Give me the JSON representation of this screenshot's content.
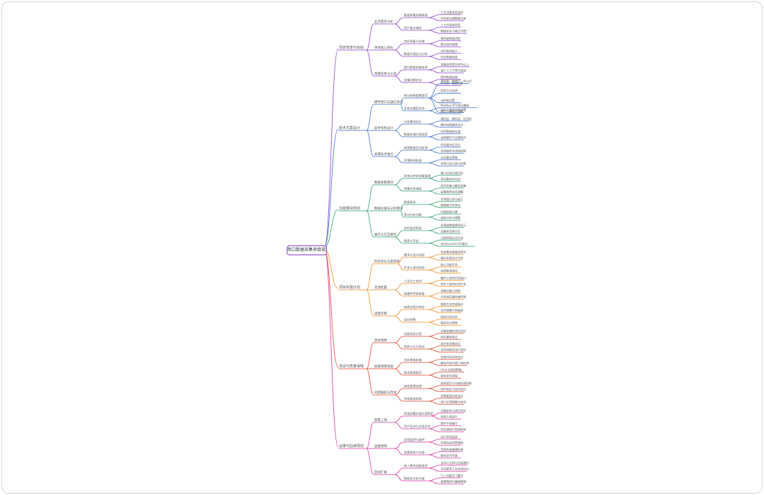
{
  "root": "串口数据采集项目规划",
  "branches": [
    {
      "label": "项目背景与目标",
      "color": "#8e3fd2",
      "children": [
        {
          "label": "业务需求分析",
          "children": [
            {
              "label": "数据采集场景梳理",
              "children": [
                "工业设备状态监控",
                "实验室仪器数据记录"
              ]
            },
            {
              "label": "用户痛点调研",
              "children": [
                "人工抄录效率低",
                "数据丢失与格式不统一"
              ]
            }
          ]
        },
        {
          "label": "项目核心目标",
          "children": [
            {
              "label": "实时采集与存储",
              "children": [
                "毫秒级数据读取",
                "断点续传保障"
              ]
            },
            {
              "label": "数据可视化与分析",
              "children": [
                "实时曲线展示",
                "历史数据回放"
              ]
            }
          ]
        },
        {
          "label": "预期成果与价值",
          "children": [
            {
              "label": "提升数据采集效率",
              "children": [
                "采集效率提升80%以上",
                "减少人工干预与错误"
              ]
            },
            {
              "label": "支撑决策优化",
              "children": [
                "提供数据依据",
                "形成统一数据标准"
              ]
            }
          ]
        }
      ]
    },
    {
      "label": "技术方案设计",
      "color": "#3a6fc8",
      "children": [
        {
          "label": "硬件接口与通信协议",
          "children": [
            {
              "label": "串口参数配置规范",
              "children": [
                "波特率、数据位、停止位",
                "校验方式选择",
                "流控制设置",
                "超时与重传机制配置"
              ]
            },
            {
              "label": "多协议兼容支持",
              "children": [
                "Modbus RTU协议解析",
                "自定义帧格式适配"
              ]
            }
          ]
        },
        {
          "label": "软件架构设计",
          "children": [
            {
              "label": "分层模块设计",
              "children": [
                "通信层、解析层、应用层",
                "模块间低耦合设计"
              ]
            },
            {
              "label": "数据存储方案选型",
              "children": [
                "时序数据库存储",
                "本地缓存与云端同步"
              ]
            }
          ]
        },
        {
          "label": "关键技术难点",
          "children": [
            {
              "label": "高频数据丢包处理",
              "children": [
                "环形缓冲区设计",
                "多线程异步读取机制"
              ]
            },
            {
              "label": "异常断线恢复",
              "children": [
                "自动重连策略",
                "异常日志记录与告警"
              ]
            }
          ]
        }
      ]
    },
    {
      "label": "功能模块规划",
      "color": "#2ea36b",
      "children": [
        {
          "label": "数据采集模块",
          "children": [
            {
              "label": "多串口并发采集管理",
              "children": [
                "端口自动扫描识别",
                "多设备同时在线"
              ]
            },
            {
              "label": "采集任务调度",
              "children": [
                "定时采集与触发采集",
                "采集频率动态调整"
              ]
            }
          ]
        },
        {
          "label": "数据处理与分析模块",
          "children": [
            {
              "label": "数据清洗",
              "children": [
                "异常值过滤与修正",
                "数据格式标准化"
              ]
            },
            {
              "label": "统计分析功能",
              "children": [
                "均值极值计算",
                "趋势分析与预警"
              ]
            }
          ]
        },
        {
          "label": "展示与交互模块",
          "children": [
            {
              "label": "实时监控界面",
              "children": [
                "多通道数据曲线显示",
                "设备状态指示灯"
              ]
            },
            {
              "label": "报表与导出",
              "children": [
                "日报周报自动生成",
                "导出Excel与CSV格式"
              ]
            }
          ]
        }
      ]
    },
    {
      "label": "项目实施计划",
      "color": "#f08a1c",
      "children": [
        {
          "label": "阶段划分与里程碑",
          "children": [
            {
              "label": "需求与设计阶段",
              "children": [
                "完成需求规格说明书",
                "输出系统设计文档"
              ]
            },
            {
              "label": "开发与测试阶段",
              "children": [
                "核心功能开发",
                "系统联调测试"
              ]
            }
          ]
        },
        {
          "label": "资源配置",
          "children": [
            {
              "label": "人员分工安排",
              "children": [
                "硬件工程师负责接口",
                "软件工程师负责开发"
              ]
            },
            {
              "label": "软硬件资源准备",
              "children": [
                "采集设备与线缆",
                "开发测试服务器环境"
              ]
            }
          ]
        },
        {
          "label": "进度控制",
          "children": [
            {
              "label": "每周进度评审会",
              "children": [
                "跟踪任务完成情况",
                "及时调整计划偏差"
              ]
            },
            {
              "label": "风险预警",
              "children": [
                "提前识别风险",
                "制定应对预案"
              ]
            }
          ]
        }
      ]
    },
    {
      "label": "测试与质量保障",
      "color": "#e0452b",
      "children": [
        {
          "label": "测试策略",
          "children": [
            {
              "label": "功能测试方案",
              "children": [
                "采集准确性测试验证",
                "协议兼容测试"
              ]
            },
            {
              "label": "性能与压力测试",
              "children": [
                "高并发采集测试",
                "长时间稳定运行测试"
              ]
            }
          ]
        },
        {
          "label": "质量保障措施",
          "children": [
            {
              "label": "代码审查机制",
              "children": [
                "定期代码评审会议",
                "静态代码扫描工具检测"
              ]
            },
            {
              "label": "版本管理规范",
              "children": [
                "Git分支管理策略",
                "版本发布流程"
              ]
            }
          ]
        },
        {
          "label": "问题跟踪与改进",
          "children": [
            {
              "label": "缺陷管理流程",
              "children": [
                "缺陷提交与分级处理机制",
                "闭环验证与回归测试"
              ]
            },
            {
              "label": "持续改进机制",
              "children": [
                "定期复盘总结会议",
                "用户反馈收集与优化"
              ]
            }
          ]
        }
      ]
    },
    {
      "label": "运维与后续规划",
      "color": "#d6359f",
      "children": [
        {
          "label": "部署上线",
          "children": [
            {
              "label": "现场部署实施方案制定",
              "children": [
                "设备安装与调试验证",
                "系统上线运行"
              ]
            },
            {
              "label": "用户培训与文档交付",
              "children": [
                "操作手册编写",
                "培训课程与现场指导"
              ]
            }
          ]
        },
        {
          "label": "运维保障",
          "children": [
            {
              "label": "远程监控与维护",
              "children": [
                "运行状态监测",
                "异常自动告警通知"
              ]
            },
            {
              "label": "定期巡检与升级",
              "children": [
                "定期系统健康检查",
                "版本迭代升级"
              ]
            }
          ]
        },
        {
          "label": "后续扩展",
          "children": [
            {
              "label": "接入更多设备类型",
              "children": [
                "支持以太网与无线通信",
                "支持更多工业总线协议"
              ]
            },
            {
              "label": "智能化分析升级",
              "children": [
                "引入机器学习算法",
                "故障预测与健康管理"
              ]
            }
          ]
        }
      ]
    }
  ]
}
